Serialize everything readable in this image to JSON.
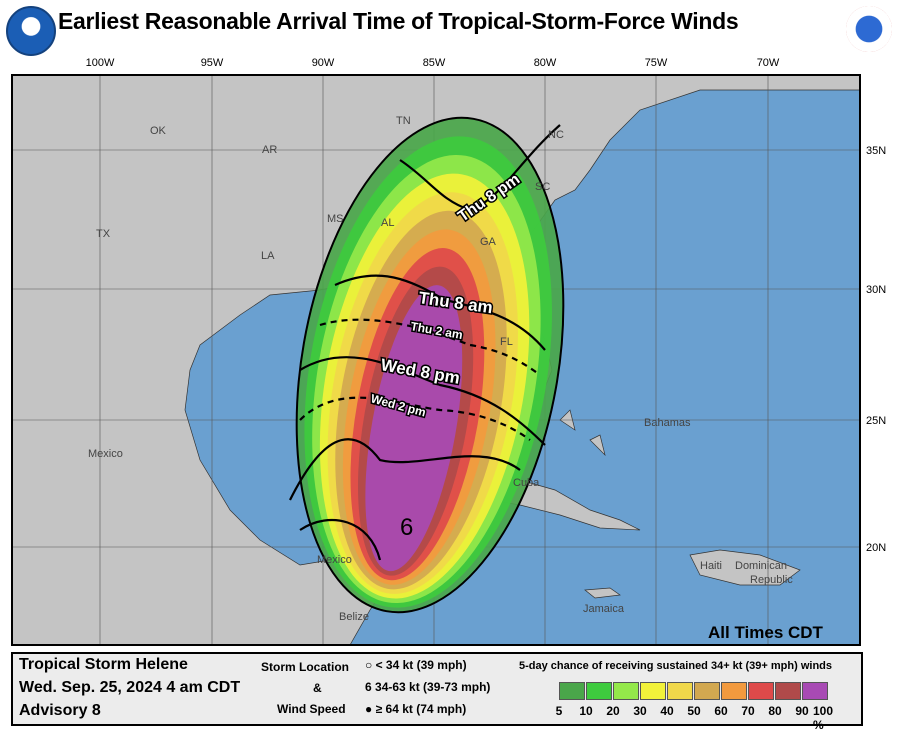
{
  "title": "Earliest Reasonable Arrival Time of Tropical-Storm-Force Winds",
  "logos": {
    "left": "NOAA",
    "right": "National Weather Service"
  },
  "lon_ticks": [
    "100W",
    "95W",
    "90W",
    "85W",
    "80W",
    "75W",
    "70W"
  ],
  "lat_ticks": [
    "35N",
    "30N",
    "25N",
    "20N"
  ],
  "labels": {
    "states": [
      "TN",
      "NC",
      "OK",
      "AR",
      "SC",
      "MS",
      "AL",
      "GA",
      "TX",
      "LA",
      "FL"
    ],
    "places": [
      "Mexico",
      "Bahamas",
      "Cuba",
      "Mexico",
      "Belize",
      "Haiti",
      "Dominican",
      "Republic",
      "Jamaica"
    ]
  },
  "arrival_times": [
    "Thu 8 pm",
    "Thu 8 am",
    "Thu 2 am",
    "Wed 8 pm",
    "Wed 2 pm"
  ],
  "time_zone_note": "All Times CDT",
  "legend": {
    "storm_name": "Tropical Storm Helene",
    "date": "Wed. Sep. 25, 2024  4 am CDT",
    "advisory": "Advisory 8",
    "symbol_title": [
      "Storm Location",
      "&",
      "Wind Speed"
    ],
    "symbols": [
      "< 34 kt (39 mph)",
      "34-63 kt (39-73 mph)",
      "≥ 64 kt (74 mph)"
    ],
    "prob_title": "5-day chance of receiving sustained 34+ kt (39+ mph) winds",
    "prob_labels": [
      "5",
      "10",
      "20",
      "30",
      "40",
      "50",
      "60",
      "70",
      "80",
      "90",
      "100 %"
    ],
    "prob_colors": [
      "#4aa64a",
      "#3ecb3e",
      "#94e84a",
      "#f2f23a",
      "#f0d84a",
      "#d2a850",
      "#f29a3e",
      "#de4a4a",
      "#b04a4a",
      "#a84ab4"
    ]
  },
  "colors": {
    "ocean": "#6aa0d0",
    "land": "#c4c4c4"
  }
}
